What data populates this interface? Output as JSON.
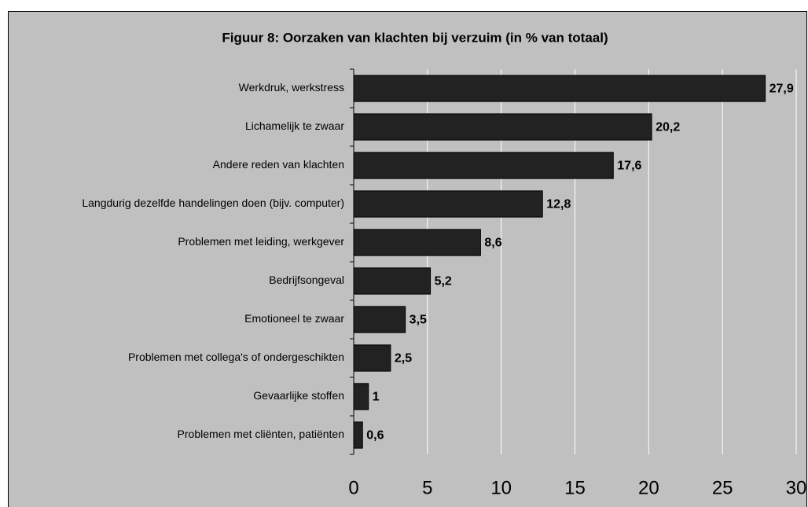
{
  "chart_data": {
    "type": "bar",
    "orientation": "horizontal",
    "title": "Figuur 8: Oorzaken van klachten bij verzuim (in % van totaal)",
    "categories": [
      "Werkdruk, werkstress",
      "Lichamelijk te zwaar",
      "Andere reden van klachten",
      "Langdurig dezelfde handelingen doen (bijv. computer)",
      "Problemen met leiding, werkgever",
      "Bedrijfsongeval",
      "Emotioneel te zwaar",
      "Problemen met collega's of ondergeschikten",
      "Gevaarlijke stoffen",
      "Problemen met cliënten, patiënten"
    ],
    "values": [
      27.9,
      20.2,
      17.6,
      12.8,
      8.6,
      5.2,
      3.5,
      2.5,
      1,
      0.6
    ],
    "value_labels": [
      "27,9",
      "20,2",
      "17,6",
      "12,8",
      "8,6",
      "5,2",
      "3,5",
      "2,5",
      "1",
      "0,6"
    ],
    "color": "#222222",
    "xlim": [
      0,
      30
    ],
    "xticks": [
      0,
      5,
      10,
      15,
      20,
      25,
      30
    ],
    "grid": true
  }
}
